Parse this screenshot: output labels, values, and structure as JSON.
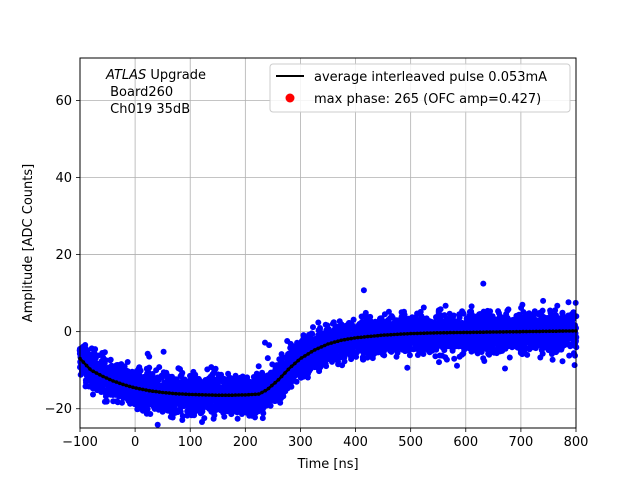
{
  "chart_data": {
    "type": "scatter",
    "title": "",
    "xlabel": "Time [ns]",
    "ylabel": "Amplitude [ADC Counts]",
    "xlim": [
      -100,
      800
    ],
    "ylim": [
      -25,
      71
    ],
    "grid": true,
    "xticks": [
      -100,
      0,
      100,
      200,
      300,
      400,
      500,
      600,
      700,
      800
    ],
    "yticks": [
      -20,
      0,
      20,
      40,
      60
    ],
    "annotation": {
      "experiment": "ATLAS",
      "experiment_suffix": " Upgrade",
      "board": " Board260",
      "channel": " Ch019 35dB"
    },
    "legend": {
      "placement": "top-right",
      "entries": [
        {
          "label": "average interleaved pulse 0.053mA",
          "color": "#000000",
          "marker": "line"
        },
        {
          "label": "max phase: 265 (OFC amp=0.427)",
          "color": "#ff0000",
          "marker": "dot"
        }
      ]
    },
    "series": [
      {
        "name": "samples",
        "color": "#0000ff",
        "marker": "dot",
        "noise_spread": 4.5,
        "envelope_x": [
          -100,
          -80,
          -60,
          -40,
          -20,
          0,
          25,
          50,
          75,
          100,
          125,
          150,
          175,
          200,
          225,
          240,
          260,
          280,
          300,
          325,
          350,
          375,
          400,
          450,
          500,
          550,
          600,
          650,
          700,
          750,
          800
        ],
        "envelope_y": [
          -7,
          -10,
          -11.5,
          -12.8,
          -13.8,
          -14.6,
          -15.3,
          -15.8,
          -16.1,
          -16.3,
          -16.4,
          -16.5,
          -16.5,
          -16.4,
          -16.2,
          -15,
          -12.5,
          -9.5,
          -7,
          -4.8,
          -3.2,
          -2.2,
          -1.6,
          -0.9,
          -0.5,
          -0.3,
          -0.2,
          -0.1,
          0,
          0.1,
          0.2
        ]
      },
      {
        "name": "average interleaved pulse 0.053mA",
        "color": "#000000",
        "marker": "line",
        "x": [
          -100,
          -80,
          -60,
          -40,
          -20,
          0,
          25,
          50,
          75,
          100,
          125,
          150,
          175,
          200,
          225,
          240,
          260,
          280,
          300,
          325,
          350,
          375,
          400,
          450,
          500,
          550,
          600,
          650,
          700,
          750,
          800
        ],
        "y": [
          -7,
          -10,
          -11.5,
          -12.8,
          -13.8,
          -14.6,
          -15.3,
          -15.8,
          -16.1,
          -16.3,
          -16.4,
          -16.5,
          -16.5,
          -16.4,
          -16.2,
          -15,
          -12.5,
          -9.5,
          -7,
          -4.8,
          -3.2,
          -2.2,
          -1.6,
          -0.9,
          -0.5,
          -0.3,
          -0.2,
          -0.1,
          0,
          0.1,
          0.2
        ]
      }
    ]
  }
}
